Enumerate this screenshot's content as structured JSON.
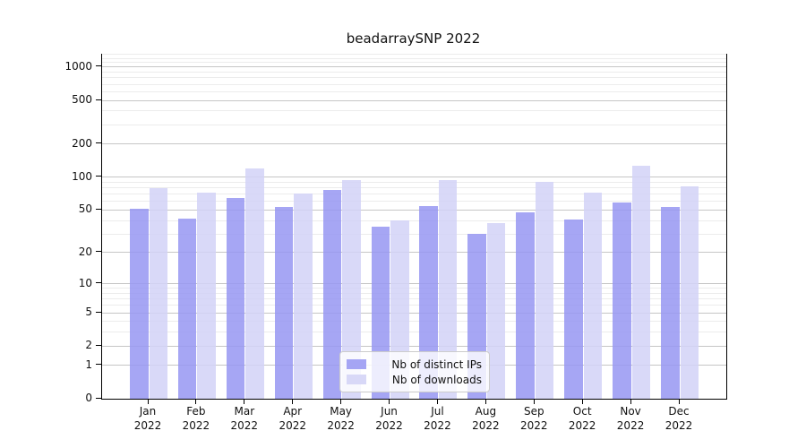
{
  "chart_data": {
    "type": "bar",
    "title": "beadarraySNP 2022",
    "xlabel": "",
    "ylabel": "",
    "categories": [
      "Jan",
      "Feb",
      "Mar",
      "Apr",
      "May",
      "Jun",
      "Jul",
      "Aug",
      "Sep",
      "Oct",
      "Nov",
      "Dec"
    ],
    "year_label": "2022",
    "series": [
      {
        "name": "Nb of distinct IPs",
        "color": "rgba(150,150,242,0.85)",
        "legend_color": "#a5a5f4",
        "values": [
          51,
          42,
          64,
          53,
          77,
          35,
          54,
          30,
          48,
          41,
          59,
          53
        ]
      },
      {
        "name": "Nb of downloads",
        "color": "rgba(210,210,247,0.85)",
        "legend_color": "#d8d8f7",
        "values": [
          80,
          72,
          121,
          71,
          95,
          40,
          95,
          38,
          91,
          73,
          127,
          83
        ]
      }
    ],
    "yscale": "log1p",
    "ylim": [
      0,
      1300
    ],
    "yticks": [
      0,
      1,
      2,
      5,
      10,
      20,
      50,
      100,
      200,
      500,
      1000
    ],
    "minor_yticks": [
      3,
      4,
      6,
      7,
      8,
      9,
      30,
      40,
      60,
      70,
      80,
      90,
      300,
      400,
      600,
      700,
      800,
      900,
      1100,
      1200,
      1300
    ],
    "grid": true,
    "legend_position": "lower center",
    "colors": {
      "major_gridline": "#c6c6c6",
      "minor_gridline": "#ececec",
      "axis": "#000000"
    }
  }
}
